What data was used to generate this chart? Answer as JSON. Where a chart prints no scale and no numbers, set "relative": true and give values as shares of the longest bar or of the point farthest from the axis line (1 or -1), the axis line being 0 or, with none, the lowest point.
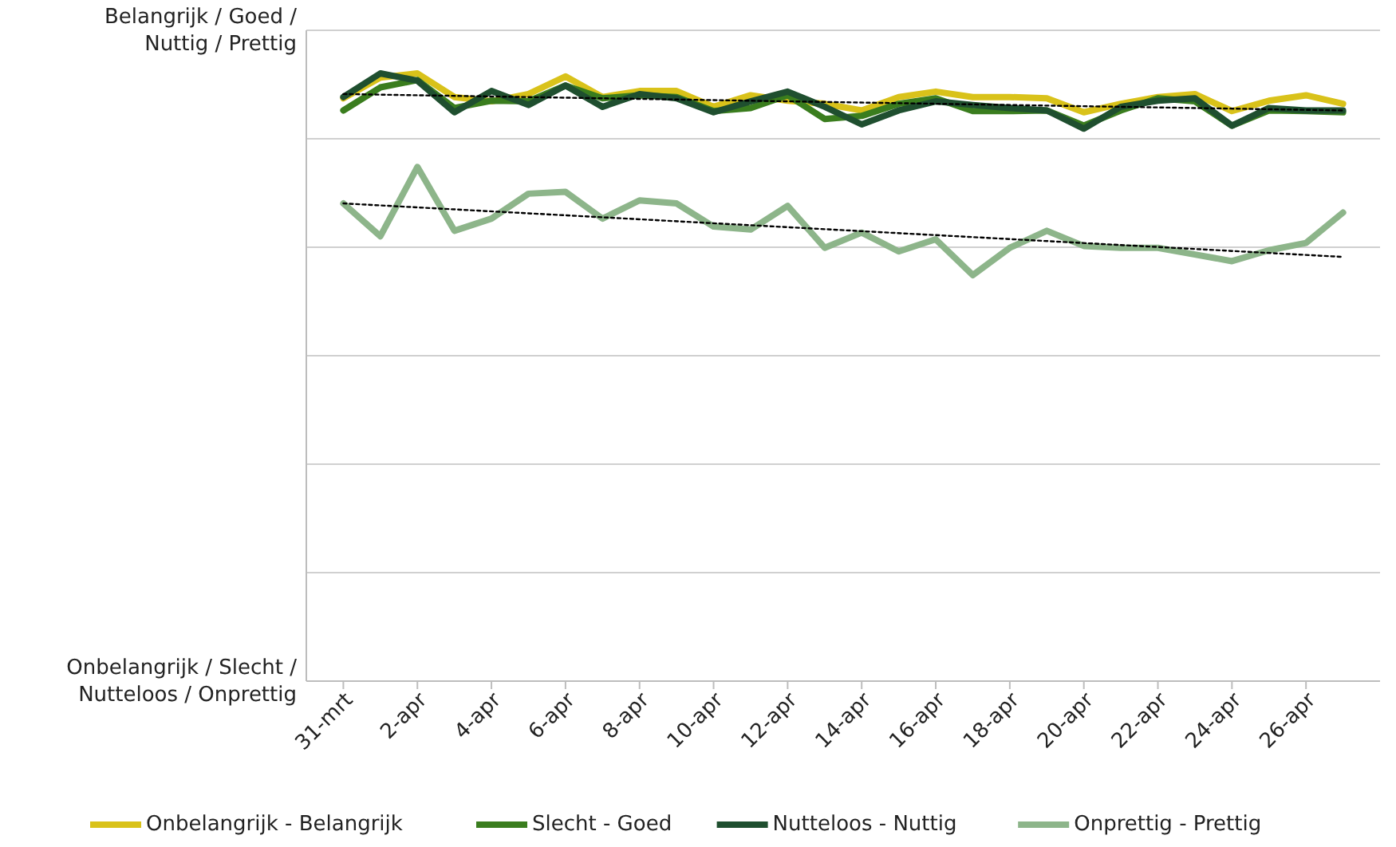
{
  "chart_data": {
    "type": "line",
    "relative": true,
    "annotations": [
      "Belangrijk / Goed / Nuttig / Prettig",
      "Onbelangrijk / Slecht / Nutteloos / Onprettig"
    ],
    "x": [
      "--03-31",
      "--04-01",
      "--04-02",
      "--04-03",
      "--04-04",
      "--04-05",
      "--04-06",
      "--04-07",
      "--04-08",
      "--04-09",
      "--04-10",
      "--04-11",
      "--04-12",
      "--04-13",
      "--04-14",
      "--04-15",
      "--04-16",
      "--04-17",
      "--04-18",
      "--04-19",
      "--04-20",
      "--04-21",
      "--04-22",
      "--04-23",
      "--04-24",
      "--04-25",
      "--04-26",
      "--04-27"
    ],
    "xlim": [
      "--03-30",
      "--04-28"
    ],
    "xticks": [
      {
        "value": "--03-31",
        "label": "31-mrt"
      },
      {
        "value": "--04-02",
        "label": "2-apr"
      },
      {
        "value": "--04-04",
        "label": "4-apr"
      },
      {
        "value": "--04-06",
        "label": "6-apr"
      },
      {
        "value": "--04-08",
        "label": "8-apr"
      },
      {
        "value": "--04-10",
        "label": "10-apr"
      },
      {
        "value": "--04-12",
        "label": "12-apr"
      },
      {
        "value": "--04-14",
        "label": "14-apr"
      },
      {
        "value": "--04-16",
        "label": "16-apr"
      },
      {
        "value": "--04-18",
        "label": "18-apr"
      },
      {
        "value": "--04-20",
        "label": "20-apr"
      },
      {
        "value": "--04-22",
        "label": "22-apr"
      },
      {
        "value": "--04-24",
        "label": "24-apr"
      },
      {
        "value": "--04-26",
        "label": "26-apr"
      }
    ],
    "grid": "y",
    "legend": "bottom",
    "marker": "none",
    "line_style": "solid",
    "series": [
      {
        "name": "Onbelangrijk - Belangrijk",
        "color": "#d9c21a",
        "values": [
          0.959,
          0.993,
          1,
          0.961,
          0.954,
          0.966,
          0.995,
          0.961,
          0.971,
          0.971,
          0.945,
          0.964,
          0.955,
          0.95,
          0.939,
          0.961,
          0.97,
          0.961,
          0.961,
          0.959,
          0.936,
          0.95,
          0.961,
          0.966,
          0.938,
          0.955,
          0.964,
          0.95
        ]
      },
      {
        "name": "Slecht - Goed",
        "color": "#3a7d1e",
        "values": [
          0.939,
          0.977,
          0.989,
          0.943,
          0.955,
          0.954,
          0.98,
          0.959,
          0.964,
          0.961,
          0.938,
          0.943,
          0.964,
          0.925,
          0.93,
          0.95,
          0.959,
          0.938,
          0.938,
          0.939,
          0.914,
          0.939,
          0.959,
          0.954,
          0.914,
          0.939,
          0.938,
          0.936
        ]
      },
      {
        "name": "Nutteloos - Nuttig",
        "color": "#1f4f2f",
        "values": [
          0.961,
          1,
          0.988,
          0.936,
          0.971,
          0.948,
          0.98,
          0.945,
          0.966,
          0.959,
          0.936,
          0.954,
          0.97,
          0.945,
          0.916,
          0.939,
          0.954,
          0.948,
          0.943,
          0.939,
          0.909,
          0.945,
          0.955,
          0.959,
          0.914,
          0.943,
          0.939,
          0.939
        ]
      },
      {
        "name": "Onprettig - Prettig",
        "color": "#8db58a",
        "values": [
          0.786,
          0.732,
          0.846,
          0.741,
          0.761,
          0.802,
          0.805,
          0.761,
          0.791,
          0.786,
          0.748,
          0.743,
          0.782,
          0.713,
          0.738,
          0.707,
          0.727,
          0.668,
          0.713,
          0.741,
          0.716,
          0.713,
          0.713,
          0.702,
          0.691,
          0.709,
          0.721,
          0.771
        ]
      },
      {
        "type": "line",
        "color": "#000000",
        "line_style": "dotted",
        "x": [
          "--03-31",
          "--04-27"
        ],
        "values": [
          0.966,
          0.939
        ]
      },
      {
        "type": "line",
        "color": "#000000",
        "line_style": "dotted",
        "x": [
          "--03-31",
          "--04-27"
        ],
        "values": [
          0.786,
          0.698
        ]
      }
    ]
  }
}
